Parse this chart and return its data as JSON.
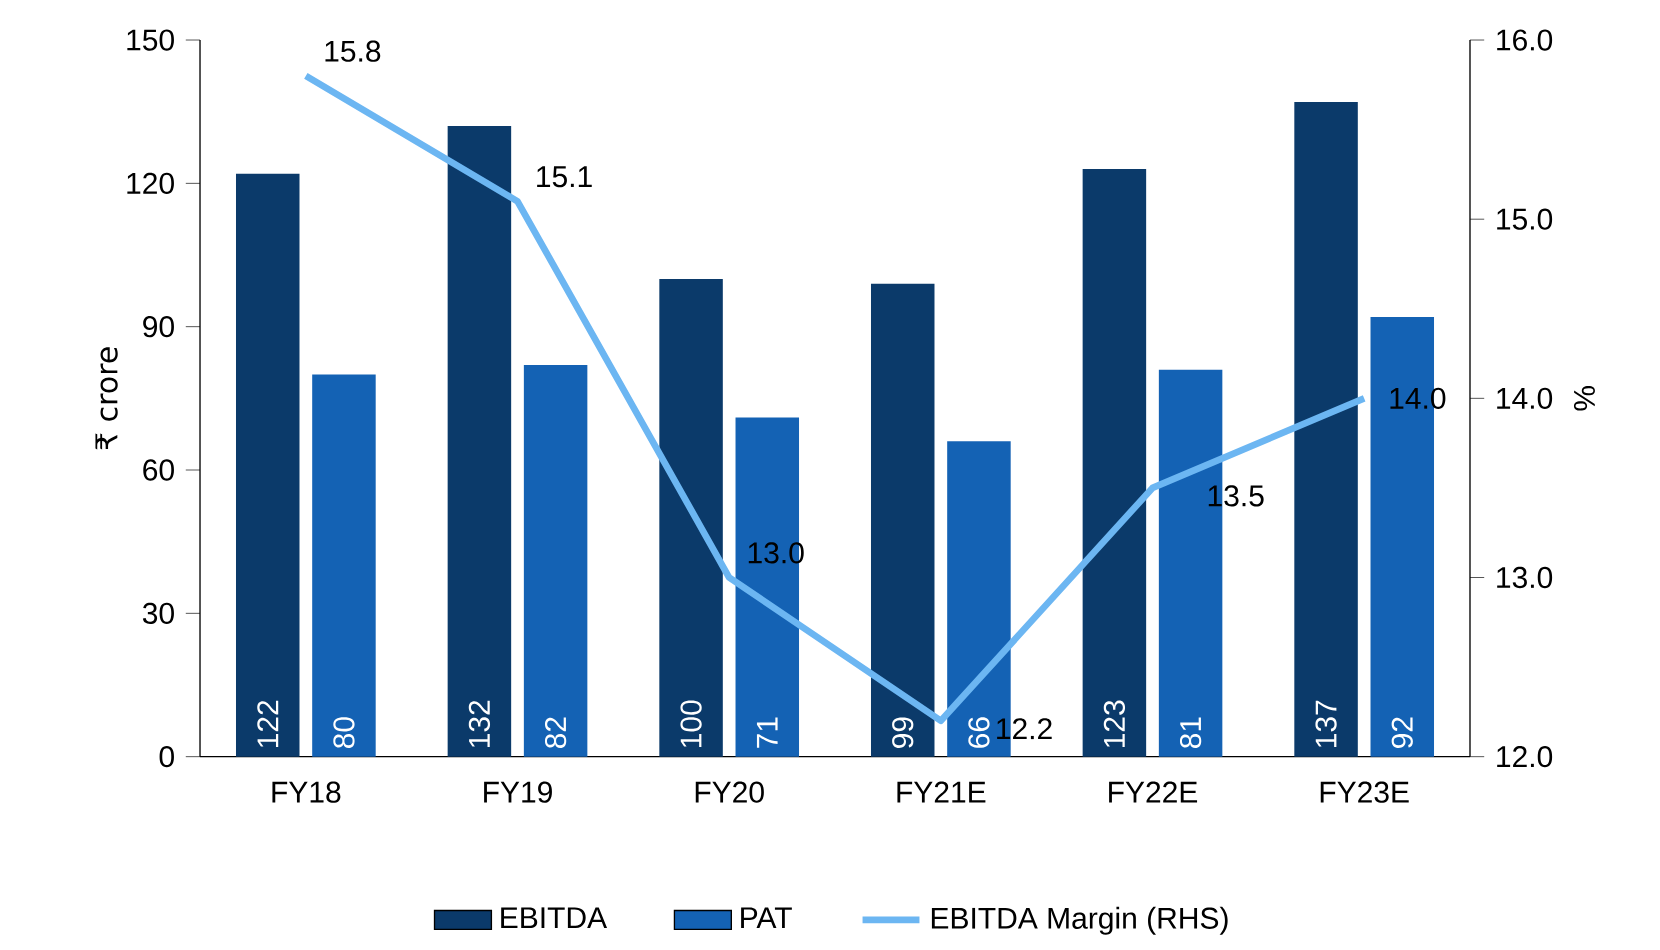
{
  "chart_data": {
    "type": "bar",
    "ylabel": "₹ crore",
    "y2label": "%",
    "categories": [
      "FY18",
      "FY19",
      "FY20",
      "FY21E",
      "FY22E",
      "FY23E"
    ],
    "series": [
      {
        "name": "EBITDA",
        "color": "#0b3a6a",
        "values": [
          122,
          132,
          100,
          99,
          123,
          137
        ]
      },
      {
        "name": "PAT",
        "color": "#1462b4",
        "values": [
          80,
          82,
          71,
          66,
          81,
          92
        ]
      },
      {
        "name": "EBITDA Margin (RHS)",
        "type": "line",
        "axis": "y2",
        "color": "#6cb6f2",
        "values": [
          15.8,
          15.1,
          13.0,
          12.2,
          13.5,
          14.0
        ],
        "value_labels": [
          "15.8",
          "15.1",
          "13.0",
          "12.2",
          "13.5",
          "14.0"
        ]
      }
    ],
    "ylim": [
      0,
      150
    ],
    "yticks": [
      0,
      30,
      60,
      90,
      120,
      150
    ],
    "y2lim": [
      12,
      16
    ],
    "y2ticks": [
      {
        "value": 12,
        "label": "12.0"
      },
      {
        "value": 13,
        "label": "13.0"
      },
      {
        "value": 14,
        "label": "14.0"
      },
      {
        "value": 15,
        "label": "15.0"
      },
      {
        "value": 16,
        "label": "16.0"
      }
    ],
    "data_labels": true,
    "legend": "bottom",
    "grid": false,
    "marker": "none"
  }
}
